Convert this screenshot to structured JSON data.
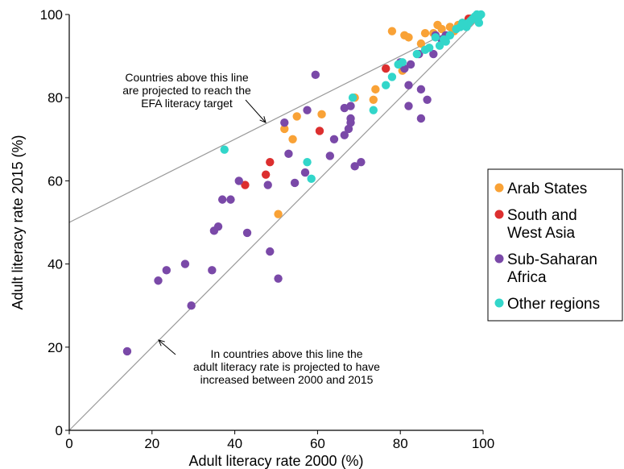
{
  "chart_data": {
    "type": "scatter",
    "xlabel": "Adult literacy rate 2000 (%)",
    "ylabel": "Adult literacy rate 2015 (%)",
    "xlim": [
      0,
      100
    ],
    "ylim": [
      0,
      100
    ],
    "xticks": [
      "0",
      "20",
      "40",
      "60",
      "80",
      "100"
    ],
    "yticks": [
      "0",
      "20",
      "40",
      "60",
      "80",
      "100"
    ],
    "grid": false,
    "legend_position": "right",
    "reference_lines": [
      {
        "from": [
          0,
          0
        ],
        "to": [
          100,
          100
        ]
      },
      {
        "from": [
          0,
          50
        ],
        "to": [
          100,
          100
        ]
      }
    ],
    "annotations": [
      {
        "lines": [
          "Countries above this line",
          "are projected to reach the",
          "EFA literacy target"
        ]
      },
      {
        "lines": [
          "In countries above this line the",
          "adult literacy rate is projected to have",
          "increased between 2000 and 2015"
        ]
      }
    ],
    "series": [
      {
        "name": "Arab States",
        "color": "#f9a236",
        "label_lines": [
          "Arab States"
        ],
        "points": [
          [
            50.5,
            52
          ],
          [
            52,
            72.5
          ],
          [
            54,
            70
          ],
          [
            55,
            75.5
          ],
          [
            61,
            76
          ],
          [
            69,
            80
          ],
          [
            73.5,
            79.5
          ],
          [
            74,
            82
          ],
          [
            78,
            96
          ],
          [
            80.5,
            86.5
          ],
          [
            81,
            95
          ],
          [
            82,
            94.5
          ],
          [
            85,
            93
          ],
          [
            86,
            95.5
          ],
          [
            88,
            95.5
          ],
          [
            89,
            97.5
          ],
          [
            90,
            96.5
          ],
          [
            92,
            97
          ],
          [
            93,
            96
          ],
          [
            94,
            97.5
          ],
          [
            95,
            98
          ],
          [
            97,
            98.5
          ]
        ]
      },
      {
        "name": "South and West Asia",
        "color": "#dc2f2f",
        "label_lines": [
          "South and",
          "West Asia"
        ],
        "points": [
          [
            42.5,
            59
          ],
          [
            47.5,
            61.5
          ],
          [
            48.5,
            64.5
          ],
          [
            60.5,
            72
          ],
          [
            76.5,
            87
          ],
          [
            96.5,
            99
          ],
          [
            97,
            99
          ]
        ]
      },
      {
        "name": "Sub-Saharan Africa",
        "color": "#7a49a8",
        "label_lines": [
          "Sub-Saharan",
          "Africa"
        ],
        "points": [
          [
            14,
            19
          ],
          [
            21.5,
            36
          ],
          [
            23.5,
            38.5
          ],
          [
            28,
            40
          ],
          [
            29.5,
            30
          ],
          [
            34.5,
            38.5
          ],
          [
            35,
            48
          ],
          [
            36,
            49
          ],
          [
            37,
            55.5
          ],
          [
            39,
            55.5
          ],
          [
            41,
            60
          ],
          [
            43,
            47.5
          ],
          [
            48,
            59
          ],
          [
            48.5,
            43
          ],
          [
            50.5,
            36.5
          ],
          [
            52,
            74
          ],
          [
            53,
            66.5
          ],
          [
            54.5,
            59.5
          ],
          [
            57,
            62
          ],
          [
            57.5,
            77
          ],
          [
            59.5,
            85.5
          ],
          [
            63,
            66
          ],
          [
            64,
            70
          ],
          [
            66.5,
            77.5
          ],
          [
            66.5,
            71
          ],
          [
            67.5,
            72.5
          ],
          [
            68,
            74
          ],
          [
            68,
            75
          ],
          [
            68,
            78
          ],
          [
            69,
            63.5
          ],
          [
            70.5,
            64.5
          ],
          [
            80,
            88.5
          ],
          [
            81,
            87
          ],
          [
            82,
            83
          ],
          [
            82,
            78
          ],
          [
            82.5,
            88
          ],
          [
            84.5,
            90.5
          ],
          [
            85,
            82
          ],
          [
            85,
            75
          ],
          [
            86.5,
            79.5
          ],
          [
            88,
            90.5
          ],
          [
            88.5,
            95
          ],
          [
            90,
            94
          ],
          [
            91,
            95
          ]
        ]
      },
      {
        "name": "Other regions",
        "color": "#32d6ca",
        "label_lines": [
          "Other regions"
        ],
        "points": [
          [
            37.5,
            67.5
          ],
          [
            57.5,
            64.5
          ],
          [
            58.5,
            60.5
          ],
          [
            68.5,
            80
          ],
          [
            73.5,
            77
          ],
          [
            76.5,
            83
          ],
          [
            78,
            85
          ],
          [
            79.5,
            88
          ],
          [
            80.5,
            88.5
          ],
          [
            84,
            90.5
          ],
          [
            86,
            91.5
          ],
          [
            87,
            92
          ],
          [
            88.5,
            94.5
          ],
          [
            89.5,
            92.5
          ],
          [
            90.5,
            94
          ],
          [
            91,
            93.5
          ],
          [
            92,
            95
          ],
          [
            93.5,
            96.5
          ],
          [
            94.5,
            97
          ],
          [
            95,
            98
          ],
          [
            95.5,
            97.5
          ],
          [
            96,
            97
          ],
          [
            96.5,
            98
          ],
          [
            97,
            98.5
          ],
          [
            97.5,
            99
          ],
          [
            98,
            99.5
          ],
          [
            98.5,
            100
          ],
          [
            99,
            99.5
          ],
          [
            99.5,
            100
          ],
          [
            99,
            98
          ]
        ]
      }
    ]
  }
}
